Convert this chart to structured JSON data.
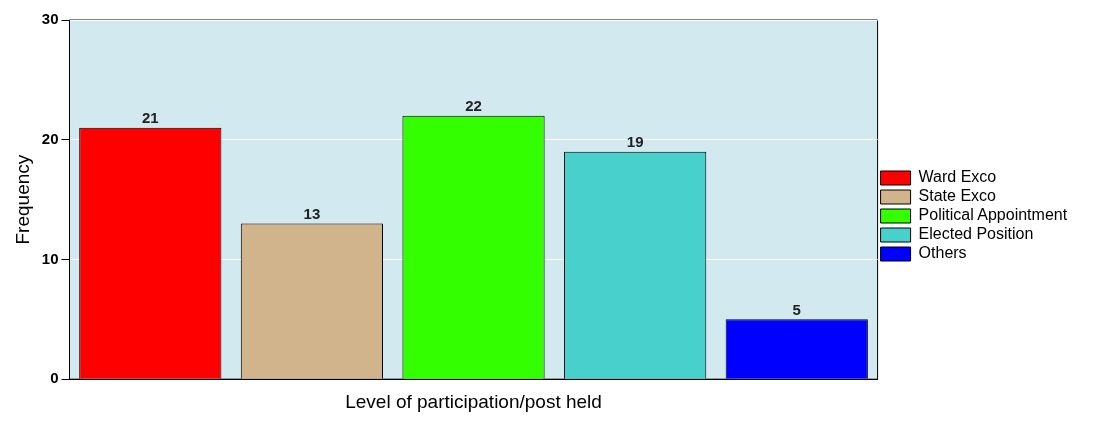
{
  "chart_data": {
    "type": "bar",
    "xlabel": "Level of participation/post held",
    "ylabel": "Frequency",
    "categories": [
      null
    ],
    "series": [
      {
        "name": "Ward Exco",
        "color": "#ff0000",
        "values": [
          21
        ]
      },
      {
        "name": "State Exco",
        "color": "#d2b48c",
        "values": [
          13
        ]
      },
      {
        "name": "Political Appointment",
        "color": "#33ff00",
        "values": [
          22
        ]
      },
      {
        "name": "Elected Position",
        "color": "#48d1cc",
        "values": [
          19
        ]
      },
      {
        "name": "Others",
        "color": "#0000ff",
        "values": [
          5
        ]
      }
    ],
    "ylim": [
      0,
      30
    ],
    "yticks": [
      0,
      10,
      20,
      30
    ],
    "grid": "y",
    "legend": "right",
    "tick_labels": "y",
    "data_labels": true
  }
}
